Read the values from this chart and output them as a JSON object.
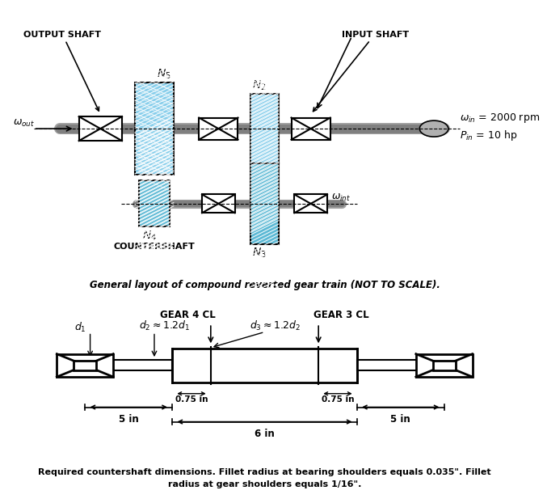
{
  "bg_color": "#ffffff",
  "title_caption": "General layout of compound reverted gear train (NOT TO SCALE).",
  "bottom_caption_line1": "Required countershaft dimensions. Fillet radius at bearing shoulders equals 0.035\". Fillet",
  "bottom_caption_line2": "radius at gear shoulders equals 1/16\".",
  "gear_diagram_labels": {
    "gear4_cl": "GEAR 4 CL",
    "gear3_cl": "GEAR 3 CL",
    "d1": "d₁",
    "d2_approx": "d₂ ≈ 1.2d₁",
    "d3_approx": "d₃ ≈ 1.2d₂",
    "dim_075_left": "0.75 in",
    "dim_075_right": "0.75 in",
    "dim_5_left": "5 in",
    "dim_6": "6 in",
    "dim_5_right": "5 in"
  },
  "shaft_labels": {
    "output_shaft": "OUTPUT SHAFT",
    "input_shaft": "INPUT SHAFT",
    "N5": "N₅",
    "N2": "N₂",
    "N4": "N₄",
    "N3": "N₃",
    "countershaft": "COUNTERSHAFT",
    "omega_out": "ωout",
    "omega_int": "ωint",
    "omega_in": "ωin = 2000 rpm",
    "P_in": "Pin = 10 hp"
  },
  "gear_color": "#87ceeb",
  "gear_color_dark": "#5bb8d4",
  "shaft_color": "#c0c0c0",
  "line_color": "#000000",
  "hatch_color": "#000000"
}
